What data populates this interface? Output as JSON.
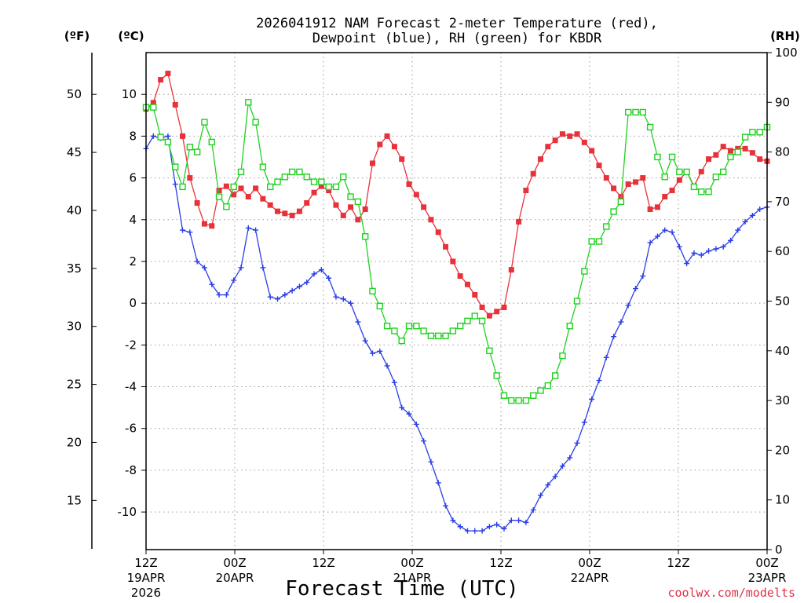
{
  "chart_data": {
    "type": "line",
    "title_line1": "2026041912 NAM Forecast 2-meter Temperature (red),",
    "title_line2": "Dewpoint (blue), RH (green) for KBDR",
    "xlabel": "Forecast Time (UTC)",
    "credit": "coolwx.com/modelts",
    "unit_labels": {
      "fahrenheit": "(ºF)",
      "celsius": "(ºC)",
      "rh": "(RH)"
    },
    "x_range_hours": [
      0,
      84
    ],
    "celsius_range": [
      -11.8,
      12
    ],
    "rh_range": [
      0,
      100
    ],
    "celsius_ticks": [
      10,
      8,
      6,
      4,
      2,
      0,
      -2,
      -4,
      -6,
      -8,
      -10
    ],
    "fahrenheit_ticks": [
      50,
      45,
      40,
      35,
      30,
      25,
      20,
      15
    ],
    "rh_ticks": [
      100,
      90,
      80,
      70,
      60,
      50,
      40,
      30,
      20,
      10,
      0
    ],
    "x_ticks": [
      {
        "hour": 0,
        "line1": "12Z",
        "line2": "19APR",
        "line3": "2026"
      },
      {
        "hour": 12,
        "line1": "00Z",
        "line2": "20APR",
        "line3": ""
      },
      {
        "hour": 24,
        "line1": "12Z",
        "line2": "",
        "line3": ""
      },
      {
        "hour": 36,
        "line1": "00Z",
        "line2": "21APR",
        "line3": ""
      },
      {
        "hour": 48,
        "line1": "12Z",
        "line2": "",
        "line3": ""
      },
      {
        "hour": 60,
        "line1": "00Z",
        "line2": "22APR",
        "line3": ""
      },
      {
        "hour": 72,
        "line1": "12Z",
        "line2": "",
        "line3": ""
      },
      {
        "hour": 84,
        "line1": "00Z",
        "line2": "23APR",
        "line3": ""
      }
    ],
    "series": [
      {
        "name": "Temperature",
        "color": "#e8323a",
        "axis": "celsius",
        "marker": "filled-square",
        "values": [
          9.3,
          9.6,
          10.7,
          11.0,
          9.5,
          8.0,
          6.0,
          4.8,
          3.8,
          3.7,
          5.4,
          5.6,
          5.2,
          5.5,
          5.1,
          5.5,
          5.0,
          4.7,
          4.4,
          4.3,
          4.2,
          4.4,
          4.8,
          5.3,
          5.6,
          5.4,
          4.7,
          4.2,
          4.6,
          4.0,
          4.5,
          6.7,
          7.6,
          8.0,
          7.5,
          6.9,
          5.7,
          5.2,
          4.6,
          4.0,
          3.4,
          2.7,
          2.0,
          1.3,
          0.9,
          0.4,
          -0.2,
          -0.6,
          -0.4,
          -0.2,
          1.6,
          3.9,
          5.4,
          6.2,
          6.9,
          7.5,
          7.8,
          8.1,
          8.0,
          8.1,
          7.7,
          7.3,
          6.6,
          6.0,
          5.5,
          5.1,
          5.7,
          5.8,
          6.0,
          4.5,
          4.6,
          5.1,
          5.4,
          5.9,
          6.3,
          5.6,
          6.3,
          6.9,
          7.1,
          7.5,
          7.3,
          7.4,
          7.4,
          7.2,
          6.9,
          6.8
        ]
      },
      {
        "name": "Dewpoint",
        "color": "#2a3ee6",
        "axis": "celsius",
        "marker": "plus",
        "values": [
          7.4,
          8.0,
          7.9,
          8.0,
          5.7,
          3.5,
          3.4,
          2.0,
          1.7,
          0.9,
          0.4,
          0.4,
          1.1,
          1.7,
          3.6,
          3.5,
          1.7,
          0.3,
          0.2,
          0.4,
          0.6,
          0.8,
          1.0,
          1.4,
          1.6,
          1.2,
          0.3,
          0.2,
          0.0,
          -0.9,
          -1.8,
          -2.4,
          -2.3,
          -3.0,
          -3.8,
          -5.0,
          -5.3,
          -5.8,
          -6.6,
          -7.6,
          -8.6,
          -9.7,
          -10.4,
          -10.7,
          -10.9,
          -10.9,
          -10.9,
          -10.7,
          -10.6,
          -10.8,
          -10.4,
          -10.4,
          -10.5,
          -9.9,
          -9.2,
          -8.7,
          -8.3,
          -7.8,
          -7.4,
          -6.7,
          -5.7,
          -4.6,
          -3.7,
          -2.6,
          -1.6,
          -0.9,
          -0.1,
          0.7,
          1.3,
          2.9,
          3.2,
          3.5,
          3.4,
          2.7,
          1.9,
          2.4,
          2.3,
          2.5,
          2.6,
          2.7,
          3.0,
          3.5,
          3.9,
          4.2,
          4.5,
          4.6
        ]
      },
      {
        "name": "RH",
        "color": "#1fd11f",
        "axis": "rh",
        "marker": "open-square",
        "values": [
          89,
          89,
          83,
          82,
          77,
          73,
          81,
          80,
          86,
          82,
          71,
          69,
          73,
          76,
          90,
          86,
          77,
          73,
          74,
          75,
          76,
          76,
          75,
          74,
          74,
          73,
          73,
          75,
          71,
          70,
          63,
          52,
          49,
          45,
          44,
          42,
          45,
          45,
          44,
          43,
          43,
          43,
          44,
          45,
          46,
          47,
          46,
          40,
          35,
          31,
          30,
          30,
          30,
          31,
          32,
          33,
          35,
          39,
          45,
          50,
          56,
          62,
          62,
          65,
          68,
          70,
          88,
          88,
          88,
          85,
          79,
          75,
          79,
          76,
          76,
          73,
          72,
          72,
          75,
          76,
          79,
          80,
          83,
          84,
          84,
          85
        ]
      }
    ]
  }
}
